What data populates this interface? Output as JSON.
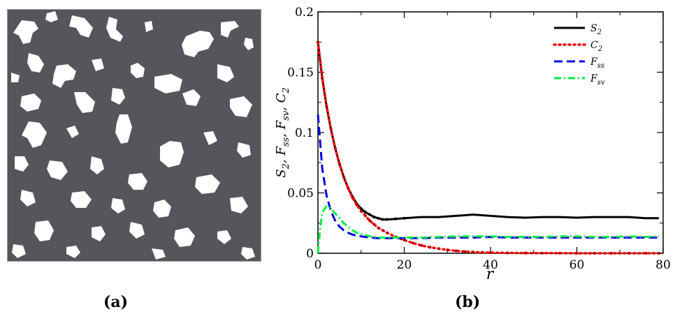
{
  "panels": {
    "a": {
      "label": "(a)"
    },
    "b": {
      "label": "(b)"
    }
  },
  "microstructure": {
    "description_colors": {
      "solid": "#55565c",
      "void": "#ffffff"
    }
  },
  "chart_data": {
    "type": "line",
    "title": "",
    "xlabel": "r",
    "ylabel": "S_2, F_ss, F_sv, C_2",
    "xlim": [
      0,
      80
    ],
    "ylim": [
      0,
      0.2
    ],
    "xticks": [
      "0",
      "20",
      "40",
      "60",
      "80"
    ],
    "yticks": [
      "0",
      "0.05",
      "0.1",
      "0.15",
      "0.2"
    ],
    "legend_position": "top-right",
    "legend": [
      {
        "key": "S2",
        "main": "S",
        "sub": "2",
        "color": "#000000",
        "style": "solid"
      },
      {
        "key": "C2",
        "main": "C",
        "sub": "2",
        "color": "#ff0000",
        "style": "dotted"
      },
      {
        "key": "Fss",
        "main": "F",
        "sub": "ss",
        "color": "#0000dd",
        "style": "dashed"
      },
      {
        "key": "Fsv",
        "main": "F",
        "sub": "sv",
        "color": "#00ee44",
        "style": "dashdot"
      }
    ],
    "series": [
      {
        "name": "S2",
        "color": "#000000",
        "x": [
          0,
          1,
          2,
          3,
          4,
          5,
          6,
          7,
          8,
          9,
          10,
          11,
          12,
          13,
          14,
          15,
          16,
          18,
          20,
          24,
          28,
          32,
          36,
          40,
          44,
          48,
          52,
          56,
          60,
          64,
          68,
          72,
          76,
          79
        ],
        "y": [
          0.175,
          0.145,
          0.122,
          0.103,
          0.087,
          0.074,
          0.063,
          0.054,
          0.047,
          0.041,
          0.037,
          0.034,
          0.032,
          0.03,
          0.029,
          0.028,
          0.028,
          0.0285,
          0.029,
          0.03,
          0.03,
          0.031,
          0.032,
          0.031,
          0.03,
          0.0295,
          0.03,
          0.03,
          0.0295,
          0.03,
          0.03,
          0.03,
          0.029,
          0.029
        ]
      },
      {
        "name": "C2",
        "color": "#ff0000",
        "x": [
          0,
          1,
          2,
          3,
          4,
          5,
          6,
          7,
          8,
          9,
          10,
          11,
          12,
          13,
          14,
          15,
          16,
          18,
          20,
          22,
          24,
          26,
          28,
          30,
          32,
          34,
          36,
          38,
          40,
          44,
          48,
          52,
          56,
          60,
          64,
          68,
          72,
          76,
          79
        ],
        "y": [
          0.175,
          0.145,
          0.122,
          0.103,
          0.087,
          0.074,
          0.063,
          0.054,
          0.046,
          0.04,
          0.035,
          0.031,
          0.027,
          0.024,
          0.021,
          0.019,
          0.017,
          0.0135,
          0.011,
          0.0085,
          0.0065,
          0.005,
          0.0038,
          0.0028,
          0.002,
          0.0014,
          0.001,
          0.0007,
          0.0005,
          0.0003,
          0.0002,
          0.0001,
          0.0001,
          0.0,
          0.0,
          0.0,
          0.0,
          0.0,
          0.0
        ]
      },
      {
        "name": "Fss",
        "color": "#0000dd",
        "x": [
          0,
          1,
          2,
          3,
          4,
          5,
          6,
          7,
          8,
          9,
          10,
          12,
          14,
          16,
          20,
          24,
          28,
          32,
          36,
          40,
          44,
          48,
          52,
          56,
          60,
          64,
          68,
          72,
          76,
          79
        ],
        "y": [
          0.115,
          0.07,
          0.048,
          0.035,
          0.027,
          0.022,
          0.019,
          0.017,
          0.0155,
          0.0145,
          0.014,
          0.013,
          0.0125,
          0.0125,
          0.0125,
          0.0125,
          0.013,
          0.013,
          0.013,
          0.0135,
          0.013,
          0.013,
          0.013,
          0.013,
          0.013,
          0.013,
          0.013,
          0.013,
          0.013,
          0.013
        ]
      },
      {
        "name": "Fsv",
        "color": "#00ee44",
        "x": [
          0,
          0.5,
          1,
          2,
          3,
          4,
          5,
          6,
          7,
          8,
          9,
          10,
          12,
          14,
          16,
          20,
          24,
          28,
          32,
          36,
          40,
          44,
          48,
          52,
          56,
          60,
          64,
          68,
          72,
          76,
          79
        ],
        "y": [
          0.0,
          0.02,
          0.034,
          0.039,
          0.037,
          0.033,
          0.029,
          0.025,
          0.022,
          0.019,
          0.017,
          0.016,
          0.014,
          0.013,
          0.013,
          0.013,
          0.013,
          0.0135,
          0.014,
          0.014,
          0.014,
          0.0135,
          0.0135,
          0.0135,
          0.014,
          0.014,
          0.0135,
          0.0135,
          0.014,
          0.0135,
          0.014
        ]
      }
    ]
  }
}
